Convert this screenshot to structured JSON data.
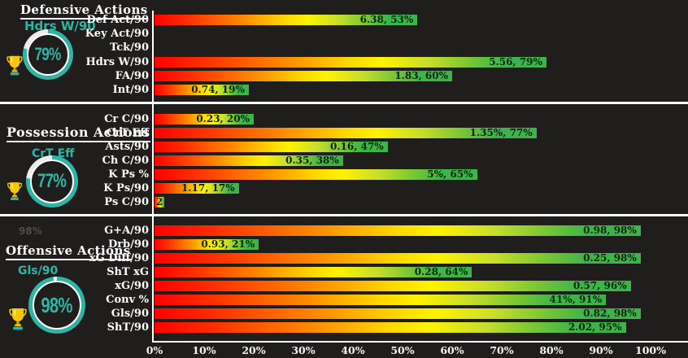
{
  "background": "#201d1d",
  "colors": {
    "accent_teal": "#2eb5a5",
    "bar_gradient_start": "#ff0000",
    "bar_gradient_mid": "#fff200",
    "bar_gradient_end": "#3cb44a",
    "text_light": "#fdfdfd",
    "bar_text": "#0c260c",
    "note_gray": "#4d4d4d"
  },
  "axis": {
    "ticks": [
      "0%",
      "10%",
      "20%",
      "30%",
      "40%",
      "50%",
      "60%",
      "70%",
      "80%",
      "90%",
      "100%"
    ],
    "range": [
      0,
      100
    ]
  },
  "chart_data": [
    {
      "type": "bar",
      "title": "Defensive Actions",
      "best_metric": "Hdrs W/90",
      "gauge": {
        "percent_text": "79%",
        "value": 79
      },
      "rows": [
        {
          "label": "Def Act/90",
          "value": "6.38",
          "percentile": 53,
          "bar_label": "6.38, 53%"
        },
        {
          "label": "Key Act/90",
          "value": null,
          "percentile": 0,
          "bar_label": ""
        },
        {
          "label": "Tck/90",
          "value": null,
          "percentile": 0,
          "bar_label": ""
        },
        {
          "label": "Hdrs W/90",
          "value": "5.56",
          "percentile": 79,
          "bar_label": "5.56, 79%"
        },
        {
          "label": "FA/90",
          "value": "1.83",
          "percentile": 60,
          "bar_label": "1.83, 60%"
        },
        {
          "label": "Int/90",
          "value": "0.74",
          "percentile": 19,
          "bar_label": "0.74, 19%"
        }
      ]
    },
    {
      "type": "bar",
      "title": "Possession Actions",
      "best_metric": "CrT Eff",
      "gauge": {
        "percent_text": "77%",
        "value": 77
      },
      "rows": [
        {
          "label": "Cr C/90",
          "value": "0.23",
          "percentile": 20,
          "bar_label": "0.23, 20%"
        },
        {
          "label": "CrT Eff",
          "value": "1.35%",
          "percentile": 77,
          "bar_label": "1.35%, 77%"
        },
        {
          "label": "Asts/90",
          "value": "0.16",
          "percentile": 47,
          "bar_label": "0.16, 47%"
        },
        {
          "label": "Ch C/90",
          "value": "0.35",
          "percentile": 38,
          "bar_label": "0.35, 38%"
        },
        {
          "label": "K Ps %",
          "value": "5%",
          "percentile": 65,
          "bar_label": "5%, 65%"
        },
        {
          "label": "K Ps/90",
          "value": "1.17",
          "percentile": 17,
          "bar_label": "1.17, 17%"
        },
        {
          "label": "Ps C/90",
          "value": "2",
          "percentile": 2,
          "bar_label": "2"
        }
      ]
    },
    {
      "type": "bar",
      "title": "Offensive Actions",
      "note": "98%",
      "best_metric": "Gls/90",
      "gauge": {
        "percent_text": "98%",
        "value": 98
      },
      "rows": [
        {
          "label": "G+A/90",
          "value": "0.98",
          "percentile": 98,
          "bar_label": "0.98, 98%"
        },
        {
          "label": "Drb/90",
          "value": "0.93",
          "percentile": 21,
          "bar_label": "0.93, 21%"
        },
        {
          "label": "xG Diff/90",
          "value": "0.25",
          "percentile": 98,
          "bar_label": "0.25, 98%"
        },
        {
          "label": "ShT xG",
          "value": "0.28",
          "percentile": 64,
          "bar_label": "0.28, 64%"
        },
        {
          "label": "xG/90",
          "value": "0.57",
          "percentile": 96,
          "bar_label": "0.57, 96%"
        },
        {
          "label": "Conv %",
          "value": "41%",
          "percentile": 91,
          "bar_label": "41%, 91%"
        },
        {
          "label": "Gls/90",
          "value": "0.82",
          "percentile": 98,
          "bar_label": "0.82, 98%"
        },
        {
          "label": "ShT/90",
          "value": "2.02",
          "percentile": 95,
          "bar_label": "2.02, 95%"
        }
      ]
    }
  ]
}
